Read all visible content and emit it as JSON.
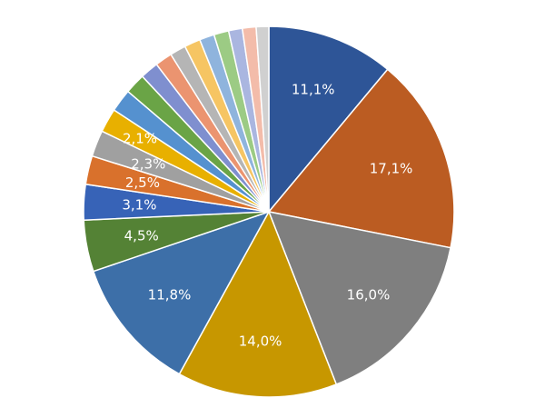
{
  "chart_data": {
    "type": "pie",
    "start_angle_deg": 0,
    "direction": "clockwise",
    "slices": [
      {
        "value": 11.1,
        "label": "11,1%",
        "color": "#2e5597"
      },
      {
        "value": 17.1,
        "label": "17,1%",
        "color": "#bb5c22"
      },
      {
        "value": 16.0,
        "label": "16,0%",
        "color": "#7f7f7f"
      },
      {
        "value": 14.0,
        "label": "14,0%",
        "color": "#c79700"
      },
      {
        "value": 11.8,
        "label": "11,8%",
        "color": "#3d6fa8"
      },
      {
        "value": 4.5,
        "label": "4,5%",
        "color": "#548235"
      },
      {
        "value": 3.1,
        "label": "3,1%",
        "color": "#3763b7"
      },
      {
        "value": 2.5,
        "label": "2,5%",
        "color": "#d9712c"
      },
      {
        "value": 2.3,
        "label": "2,3%",
        "color": "#a0a0a0"
      },
      {
        "value": 2.1,
        "label": "2,1%",
        "color": "#e8b000"
      },
      {
        "value": 2.0,
        "label": "",
        "color": "#5591cf"
      },
      {
        "value": 1.8,
        "label": "",
        "color": "#6aa446"
      },
      {
        "value": 1.6,
        "label": "",
        "color": "#7f8fcf"
      },
      {
        "value": 1.5,
        "label": "",
        "color": "#eb9470"
      },
      {
        "value": 1.4,
        "label": "",
        "color": "#b5b5b5"
      },
      {
        "value": 1.4,
        "label": "",
        "color": "#f6c563"
      },
      {
        "value": 1.3,
        "label": "",
        "color": "#8fb4dd"
      },
      {
        "value": 1.3,
        "label": "",
        "color": "#9ccb84"
      },
      {
        "value": 1.2,
        "label": "",
        "color": "#aab6e0"
      },
      {
        "value": 1.2,
        "label": "",
        "color": "#f3bcaa"
      },
      {
        "value": 1.1,
        "label": "",
        "color": "#d0d0d0"
      }
    ]
  }
}
